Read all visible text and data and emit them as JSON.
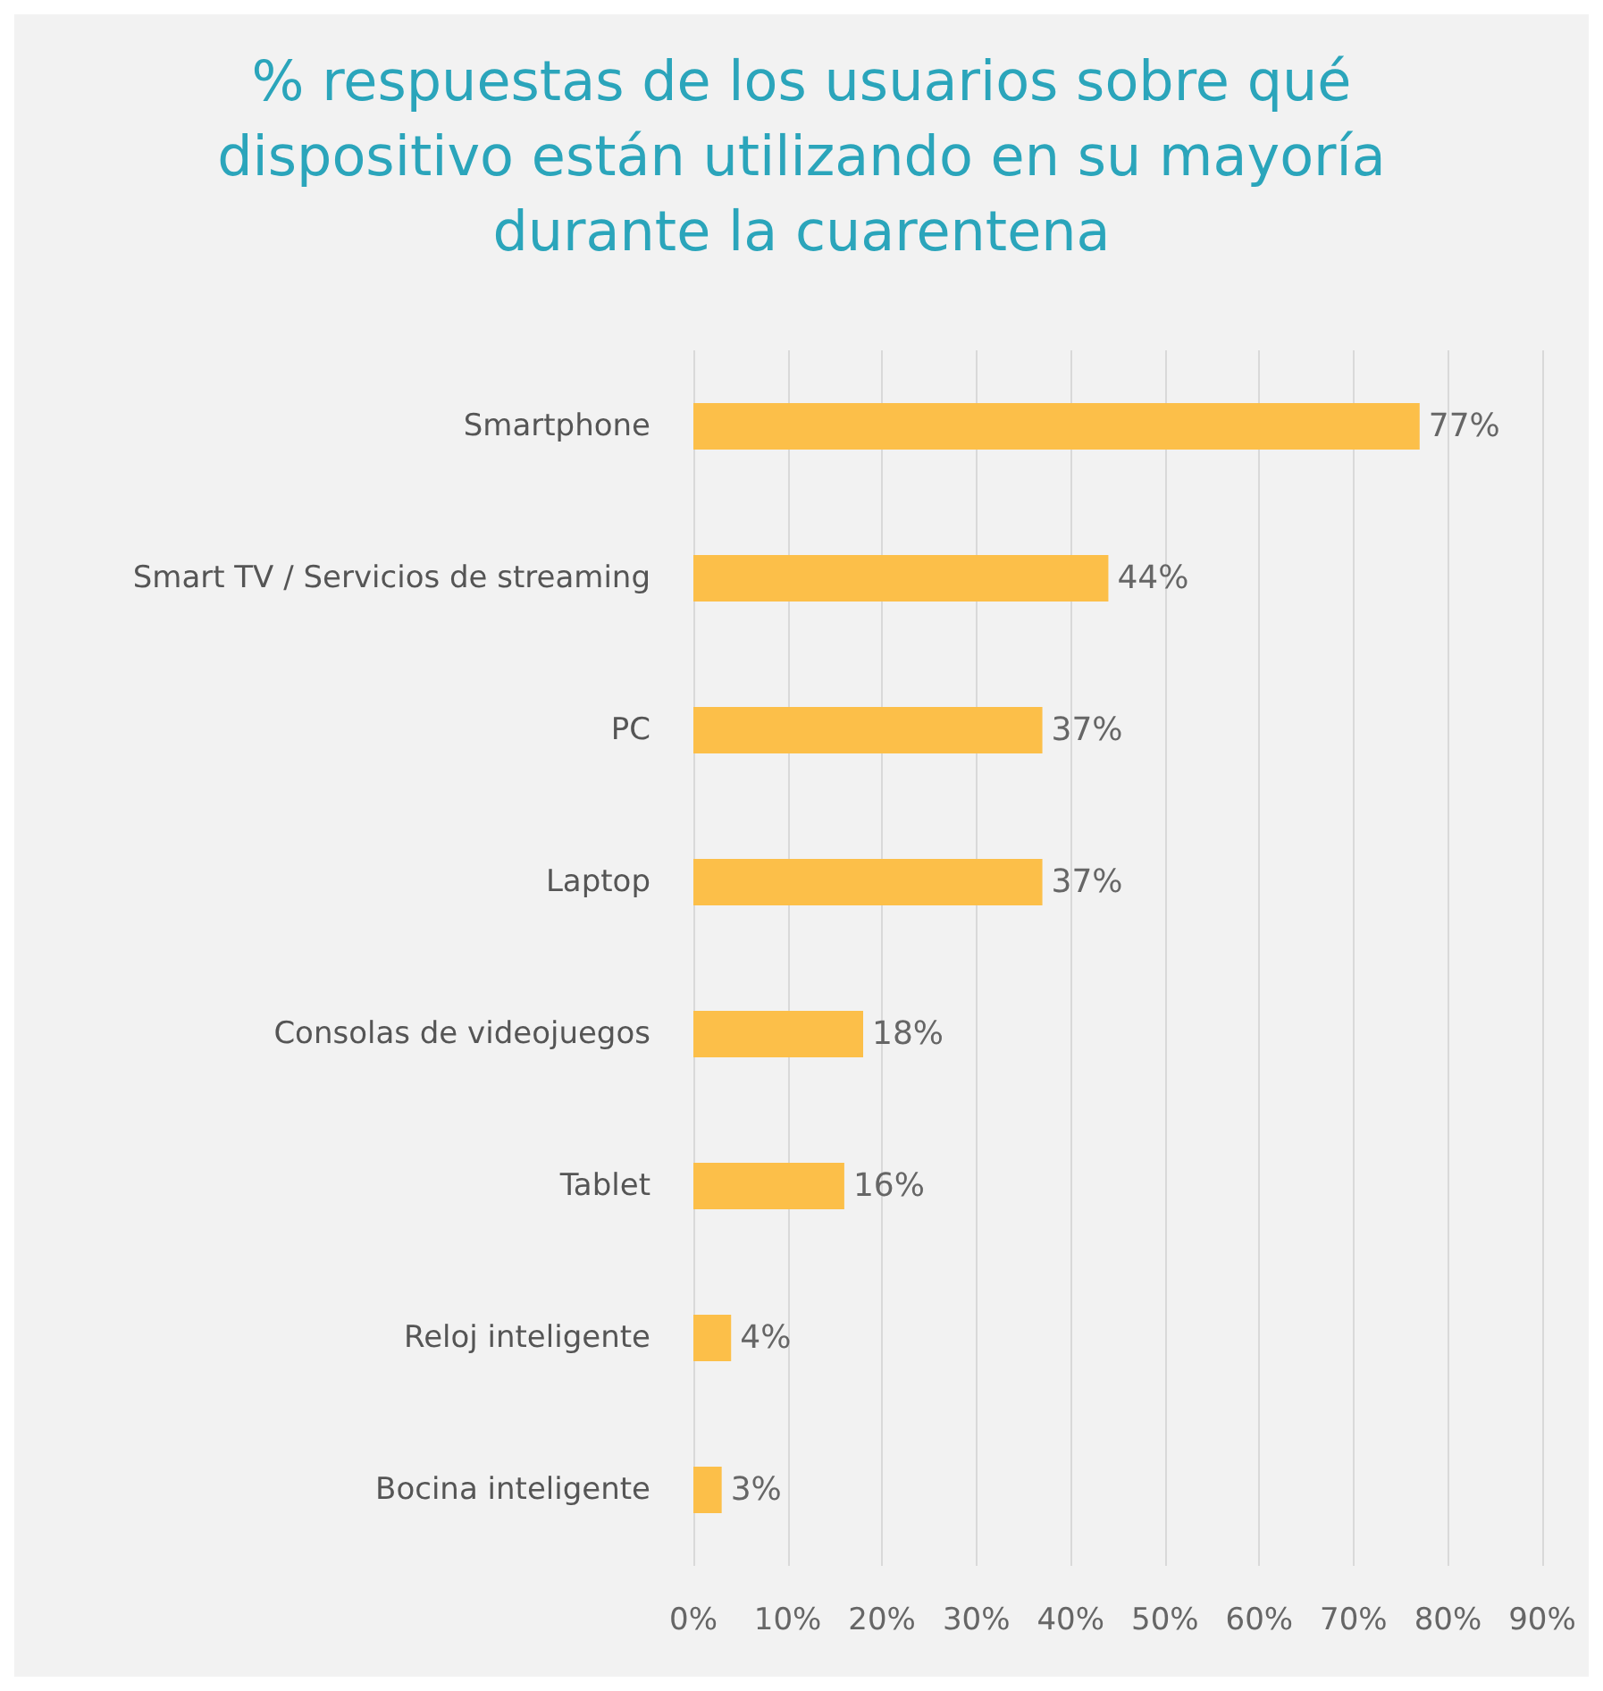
{
  "chart_data": {
    "type": "bar",
    "orientation": "horizontal",
    "title": "% respuestas de los usuarios sobre qué\ndispositivo están utilizando en su mayoría\ndurante la cuarentena",
    "categories": [
      "Smartphone",
      "Smart TV / Servicios de streaming",
      "PC",
      "Laptop",
      "Consolas de videojuegos",
      "Tablet",
      "Reloj inteligente",
      "Bocina inteligente"
    ],
    "values": [
      77,
      44,
      37,
      37,
      18,
      16,
      4,
      3
    ],
    "value_labels": [
      "77%",
      "44%",
      "37%",
      "37%",
      "18%",
      "16%",
      "4%",
      "3%"
    ],
    "color": "#fcbf49",
    "xlim": [
      0,
      90
    ],
    "xticks": [
      {
        "value": 0,
        "label": "0%"
      },
      {
        "value": 10,
        "label": "10%"
      },
      {
        "value": 20,
        "label": "20%"
      },
      {
        "value": 30,
        "label": "30%"
      },
      {
        "value": 40,
        "label": "40%"
      },
      {
        "value": 50,
        "label": "50%"
      },
      {
        "value": 60,
        "label": "60%"
      },
      {
        "value": 70,
        "label": "70%"
      },
      {
        "value": 80,
        "label": "80%"
      },
      {
        "value": 90,
        "label": "90%"
      }
    ],
    "grid": "x"
  }
}
